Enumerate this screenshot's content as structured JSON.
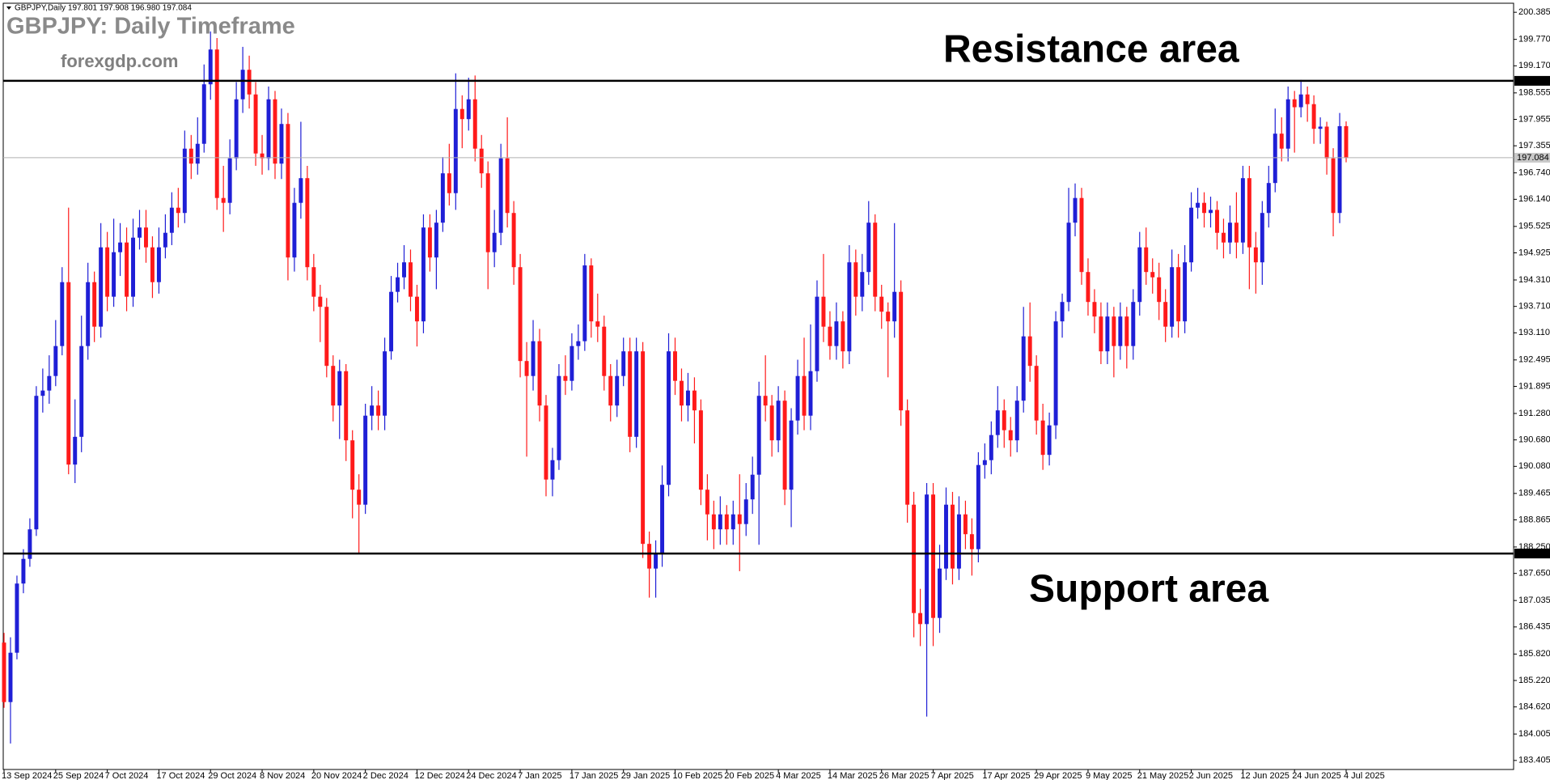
{
  "chart_data": {
    "type": "candlestick",
    "symbol_info": "GBPJPY,Daily  197.801 197.908 196.980 197.084",
    "title": "GBPJPY: Daily Timeframe",
    "subtitle": "forexgdp.com",
    "annotations": [
      "Resistance area",
      "Support area"
    ],
    "resistance": 198.829,
    "support": 188.101,
    "last_price": 197.084,
    "up_color": "#1f1fd6",
    "down_color": "#ff1a1a",
    "grid": false,
    "ylim": [
      183.2,
      200.59
    ],
    "yticks": [
      200.385,
      {
        "value": 199.77,
        "label": "199.770"
      },
      {
        "value": 199.17,
        "label": "199.170"
      },
      198.555,
      197.955,
      197.355,
      {
        "value": 196.74,
        "label": "196.740"
      },
      {
        "value": 196.14,
        "label": "196.140"
      },
      195.525,
      194.925,
      {
        "value": 194.31,
        "label": "194.310"
      },
      {
        "value": 193.71,
        "label": "193.710"
      },
      {
        "value": 193.11,
        "label": "193.110"
      },
      192.495,
      191.895,
      {
        "value": 191.28,
        "label": "191.280"
      },
      {
        "value": 190.68,
        "label": "190.680"
      },
      {
        "value": 190.08,
        "label": "190.080"
      },
      189.465,
      188.865,
      {
        "value": 188.25,
        "label": "188.250"
      },
      {
        "value": 187.65,
        "label": "187.650"
      },
      187.035,
      186.435,
      {
        "value": 185.82,
        "label": "185.820"
      },
      {
        "value": 185.22,
        "label": "185.220"
      },
      {
        "value": 184.62,
        "label": "184.620"
      },
      184.005,
      183.405
    ],
    "categories": [
      "13 Sep 2024",
      null,
      null,
      null,
      null,
      null,
      null,
      null,
      "25 Sep 2024",
      null,
      null,
      null,
      null,
      null,
      null,
      null,
      "7 Oct 2024",
      null,
      null,
      null,
      null,
      null,
      null,
      null,
      "17 Oct 2024",
      null,
      null,
      null,
      null,
      null,
      null,
      null,
      "29 Oct 2024",
      null,
      null,
      null,
      null,
      null,
      null,
      null,
      "8 Nov 2024",
      null,
      null,
      null,
      null,
      null,
      null,
      null,
      "20 Nov 2024",
      null,
      null,
      null,
      null,
      null,
      null,
      null,
      "2 Dec 2024",
      null,
      null,
      null,
      null,
      null,
      null,
      null,
      "12 Dec 2024",
      null,
      null,
      null,
      null,
      null,
      null,
      null,
      "24 Dec 2024",
      null,
      null,
      null,
      null,
      null,
      null,
      null,
      "7 Jan 2025",
      null,
      null,
      null,
      null,
      null,
      null,
      null,
      "17 Jan 2025",
      null,
      null,
      null,
      null,
      null,
      null,
      null,
      "29 Jan 2025",
      null,
      null,
      null,
      null,
      null,
      null,
      null,
      "10 Feb 2025",
      null,
      null,
      null,
      null,
      null,
      null,
      null,
      "20 Feb 2025",
      null,
      null,
      null,
      null,
      null,
      null,
      null,
      "4 Mar 2025",
      null,
      null,
      null,
      null,
      null,
      null,
      null,
      "14 Mar 2025",
      null,
      null,
      null,
      null,
      null,
      null,
      null,
      "26 Mar 2025",
      null,
      null,
      null,
      null,
      null,
      null,
      null,
      "7 Apr 2025",
      null,
      null,
      null,
      null,
      null,
      null,
      null,
      "17 Apr 2025",
      null,
      null,
      null,
      null,
      null,
      null,
      null,
      "29 Apr 2025",
      null,
      null,
      null,
      null,
      null,
      null,
      null,
      "9 May 2025",
      null,
      null,
      null,
      null,
      null,
      null,
      null,
      "21 May 2025",
      null,
      null,
      null,
      null,
      null,
      null,
      null,
      "2 Jun 2025",
      null,
      null,
      null,
      null,
      null,
      null,
      null,
      "12 Jun 2025",
      null,
      null,
      null,
      null,
      null,
      null,
      null,
      "24 Jun 2025",
      null,
      null,
      null,
      null,
      null,
      null,
      null,
      "4 Jul 2025"
    ],
    "open": [
      186.08,
      184.73,
      185.85,
      187.42,
      187.98,
      188.65,
      191.68,
      191.8,
      192.13,
      192.81,
      194.26,
      190.12,
      190.75,
      192.81,
      194.26,
      193.25,
      195.05,
      193.93,
      194.94,
      195.16,
      193.93,
      195.27,
      195.5,
      195.05,
      194.26,
      195.05,
      195.38,
      195.95,
      195.83,
      197.29,
      196.95,
      197.4,
      198.75,
      199.54,
      196.17,
      196.06,
      197.07,
      198.41,
      199.08,
      198.52,
      197.18,
      197.07,
      198.41,
      196.95,
      197.85,
      194.82,
      196.06,
      196.62,
      194.6,
      193.93,
      193.7,
      192.36,
      191.46,
      192.24,
      190.67,
      189.55,
      189.21,
      191.23,
      191.46,
      191.23,
      192.69,
      194.04,
      194.37,
      194.71,
      193.93,
      193.37,
      195.5,
      194.82,
      195.61,
      196.73,
      196.28,
      198.19,
      197.96,
      198.41,
      197.29,
      196.73,
      194.94,
      195.38,
      197.07,
      195.83,
      194.6,
      192.47,
      192.13,
      192.92,
      191.46,
      189.78,
      190.22,
      192.13,
      192.02,
      192.81,
      192.92,
      194.64,
      193.37,
      193.25,
      192.13,
      191.46,
      192.13,
      192.69,
      190.75,
      192.69,
      188.32,
      187.76,
      188.09,
      189.66,
      192.69,
      192.02,
      191.46,
      191.8,
      191.35,
      189.55,
      188.99,
      188.65,
      188.99,
      188.65,
      188.99,
      188.77,
      189.33,
      189.89,
      191.68,
      191.46,
      190.67,
      191.57,
      189.55,
      191.12,
      192.13,
      191.23,
      192.24,
      193.93,
      193.25,
      192.81,
      193.37,
      192.69,
      194.71,
      193.93,
      194.49,
      195.61,
      193.93,
      193.59,
      193.37,
      194.04,
      191.35,
      189.21,
      186.75,
      186.5,
      189.44,
      186.64,
      187.76,
      189.21,
      187.76,
      188.99,
      188.54,
      188.2,
      190.11,
      190.22,
      190.79,
      191.35,
      190.9,
      190.67,
      191.57,
      193.03,
      192.36,
      191.12,
      190.34,
      191.01,
      193.37,
      193.81,
      195.61,
      196.17,
      194.49,
      193.81,
      193.48,
      192.69,
      193.48,
      192.81,
      193.48,
      192.81,
      193.81,
      195.05,
      194.49,
      194.37,
      193.81,
      193.25,
      194.6,
      193.37,
      194.71,
      195.95,
      196.06,
      195.83,
      195.9,
      195.38,
      195.16,
      195.61,
      195.16,
      196.62,
      195.05,
      194.71,
      195.83,
      196.51,
      197.63,
      197.29,
      198.41,
      198.23,
      198.52,
      198.3,
      197.74,
      197.79,
      197.07,
      195.83,
      197.801
    ],
    "high": [
      186.3,
      186.2,
      187.6,
      188.2,
      188.9,
      191.9,
      192.3,
      192.6,
      193.4,
      194.6,
      195.95,
      191.6,
      193.5,
      194.7,
      194.5,
      195.6,
      195.4,
      195.7,
      195.6,
      195.5,
      195.7,
      195.9,
      195.9,
      195.3,
      195.5,
      195.8,
      196.3,
      196.4,
      197.7,
      197.6,
      198.0,
      199.2,
      199.95,
      199.8,
      196.9,
      197.5,
      198.8,
      199.6,
      199.4,
      198.8,
      197.6,
      198.7,
      198.6,
      198.2,
      198.1,
      196.4,
      197.9,
      196.9,
      194.9,
      194.2,
      193.9,
      192.6,
      192.5,
      192.4,
      190.9,
      189.9,
      191.5,
      191.9,
      191.8,
      193.0,
      194.4,
      194.7,
      195.1,
      195.0,
      194.2,
      195.8,
      195.8,
      195.9,
      197.1,
      197.4,
      199.0,
      198.5,
      198.9,
      198.95,
      197.6,
      197.0,
      195.9,
      197.4,
      198.0,
      196.1,
      194.9,
      192.9,
      193.4,
      193.2,
      191.7,
      190.5,
      192.4,
      192.6,
      193.1,
      193.3,
      194.9,
      194.8,
      194.0,
      193.5,
      192.4,
      192.5,
      193.0,
      193.0,
      193.0,
      192.9,
      188.6,
      188.4,
      190.1,
      193.1,
      193.0,
      192.3,
      192.2,
      192.1,
      191.6,
      189.9,
      189.3,
      189.4,
      189.2,
      189.3,
      189.9,
      189.7,
      190.3,
      192.0,
      192.6,
      191.7,
      191.9,
      191.8,
      191.4,
      192.5,
      193.0,
      193.3,
      194.3,
      194.9,
      193.6,
      193.8,
      193.6,
      195.1,
      195.0,
      194.9,
      196.1,
      195.8,
      194.2,
      193.8,
      195.6,
      194.3,
      191.6,
      189.5,
      187.3,
      189.7,
      189.7,
      188.3,
      189.6,
      189.5,
      189.4,
      189.3,
      188.9,
      190.4,
      190.6,
      191.1,
      191.9,
      191.6,
      191.2,
      191.9,
      193.7,
      193.8,
      192.6,
      191.5,
      191.3,
      193.6,
      194.0,
      196.4,
      196.5,
      196.4,
      194.8,
      194.1,
      193.8,
      193.8,
      193.7,
      193.8,
      193.7,
      194.1,
      195.4,
      195.5,
      194.8,
      194.7,
      194.1,
      195.0,
      194.9,
      195.1,
      196.3,
      196.4,
      196.3,
      196.2,
      196.1,
      195.7,
      196.0,
      196.3,
      196.9,
      196.9,
      195.4,
      196.1,
      196.9,
      198.2,
      198.0,
      198.7,
      198.6,
      198.85,
      198.7,
      198.5,
      198.0,
      197.9,
      197.3,
      198.1,
      197.908
    ],
    "low": [
      184.6,
      183.79,
      185.7,
      187.2,
      187.8,
      188.5,
      191.3,
      191.5,
      191.9,
      192.6,
      189.9,
      189.7,
      190.4,
      192.5,
      192.9,
      193.0,
      193.6,
      193.7,
      194.4,
      193.6,
      193.7,
      195.0,
      194.7,
      193.9,
      194.0,
      194.8,
      195.1,
      195.5,
      195.6,
      196.6,
      196.7,
      197.2,
      198.4,
      195.9,
      195.4,
      195.8,
      196.8,
      198.1,
      198.2,
      196.9,
      196.7,
      196.8,
      196.6,
      196.6,
      194.3,
      194.5,
      195.7,
      194.3,
      193.6,
      192.9,
      192.1,
      191.1,
      190.7,
      190.2,
      188.9,
      188.1,
      189.0,
      190.9,
      190.9,
      190.9,
      192.5,
      193.8,
      194.1,
      193.6,
      192.8,
      193.1,
      194.5,
      194.1,
      195.4,
      196.0,
      195.9,
      197.3,
      197.7,
      197.0,
      196.4,
      194.1,
      194.6,
      195.1,
      195.5,
      194.2,
      192.1,
      190.3,
      191.8,
      191.1,
      189.4,
      189.4,
      190.0,
      191.7,
      191.8,
      192.5,
      192.7,
      193.0,
      192.9,
      191.8,
      191.1,
      191.2,
      191.9,
      190.4,
      190.5,
      188.0,
      187.1,
      187.1,
      187.8,
      189.4,
      191.7,
      191.1,
      191.1,
      190.6,
      189.2,
      188.4,
      188.2,
      188.3,
      188.3,
      188.3,
      187.7,
      188.5,
      189.0,
      188.3,
      191.1,
      190.3,
      190.4,
      189.2,
      188.7,
      190.8,
      190.9,
      190.9,
      192.0,
      192.9,
      192.5,
      192.5,
      192.3,
      192.4,
      193.5,
      193.6,
      194.2,
      193.6,
      193.2,
      192.1,
      193.0,
      191.0,
      188.8,
      186.2,
      186.0,
      184.4,
      186.0,
      186.3,
      187.5,
      187.4,
      187.5,
      188.2,
      187.6,
      187.9,
      189.8,
      189.9,
      190.5,
      190.5,
      190.3,
      190.4,
      191.3,
      192.0,
      190.8,
      190.0,
      190.1,
      190.7,
      193.0,
      193.6,
      195.3,
      194.2,
      193.5,
      193.1,
      192.4,
      192.4,
      192.1,
      192.5,
      192.3,
      192.5,
      193.5,
      194.2,
      194.0,
      193.4,
      192.9,
      193.0,
      193.0,
      193.1,
      194.5,
      195.7,
      195.5,
      195.5,
      195.0,
      194.8,
      194.9,
      194.8,
      194.9,
      194.1,
      194.0,
      194.2,
      195.5,
      196.3,
      197.0,
      197.0,
      197.2,
      198.0,
      197.9,
      197.4,
      197.4,
      196.7,
      195.3,
      195.6,
      196.98
    ],
    "close": [
      184.73,
      185.85,
      187.42,
      187.98,
      188.65,
      191.68,
      191.8,
      192.13,
      192.81,
      194.26,
      190.12,
      190.75,
      192.81,
      194.26,
      193.25,
      195.05,
      193.93,
      194.94,
      195.16,
      193.93,
      195.27,
      195.5,
      195.05,
      194.26,
      195.05,
      195.38,
      195.95,
      195.83,
      197.29,
      196.95,
      197.4,
      198.75,
      199.54,
      196.17,
      196.06,
      197.07,
      198.41,
      199.08,
      198.52,
      197.18,
      197.07,
      198.41,
      196.95,
      197.85,
      194.82,
      196.06,
      196.62,
      194.6,
      193.93,
      193.7,
      192.36,
      191.46,
      192.24,
      190.67,
      189.55,
      189.21,
      191.23,
      191.46,
      191.23,
      192.69,
      194.04,
      194.37,
      194.71,
      193.93,
      193.37,
      195.5,
      194.82,
      195.61,
      196.73,
      196.28,
      198.19,
      197.96,
      198.41,
      197.29,
      196.73,
      194.94,
      195.38,
      197.07,
      195.83,
      194.6,
      192.47,
      192.13,
      192.92,
      191.46,
      189.78,
      190.22,
      192.13,
      192.02,
      192.81,
      192.92,
      194.64,
      193.37,
      193.25,
      192.13,
      191.46,
      192.13,
      192.69,
      190.75,
      192.69,
      188.32,
      187.76,
      188.09,
      189.66,
      192.69,
      192.02,
      191.46,
      191.8,
      191.35,
      189.55,
      188.99,
      188.65,
      188.99,
      188.65,
      188.99,
      188.77,
      189.33,
      189.89,
      191.68,
      191.46,
      190.67,
      191.57,
      189.55,
      191.12,
      192.13,
      191.23,
      192.24,
      193.93,
      193.25,
      192.81,
      193.37,
      192.69,
      194.71,
      193.93,
      194.49,
      195.61,
      193.93,
      193.59,
      193.37,
      194.04,
      191.35,
      189.21,
      186.75,
      186.5,
      189.44,
      186.64,
      187.76,
      189.21,
      187.76,
      188.99,
      188.54,
      188.2,
      190.11,
      190.22,
      190.79,
      191.35,
      190.9,
      190.67,
      191.57,
      193.03,
      192.36,
      191.12,
      190.34,
      191.01,
      193.37,
      193.81,
      195.61,
      196.17,
      194.49,
      193.81,
      193.48,
      192.69,
      193.48,
      192.81,
      193.48,
      192.81,
      193.81,
      195.05,
      194.49,
      194.37,
      193.81,
      193.25,
      194.6,
      193.37,
      194.71,
      195.95,
      196.06,
      195.83,
      195.9,
      195.38,
      195.16,
      195.61,
      195.16,
      196.62,
      195.05,
      194.71,
      195.83,
      196.51,
      197.63,
      197.29,
      198.41,
      198.23,
      198.52,
      198.3,
      197.74,
      197.79,
      197.07,
      195.83,
      197.8,
      197.084
    ]
  }
}
